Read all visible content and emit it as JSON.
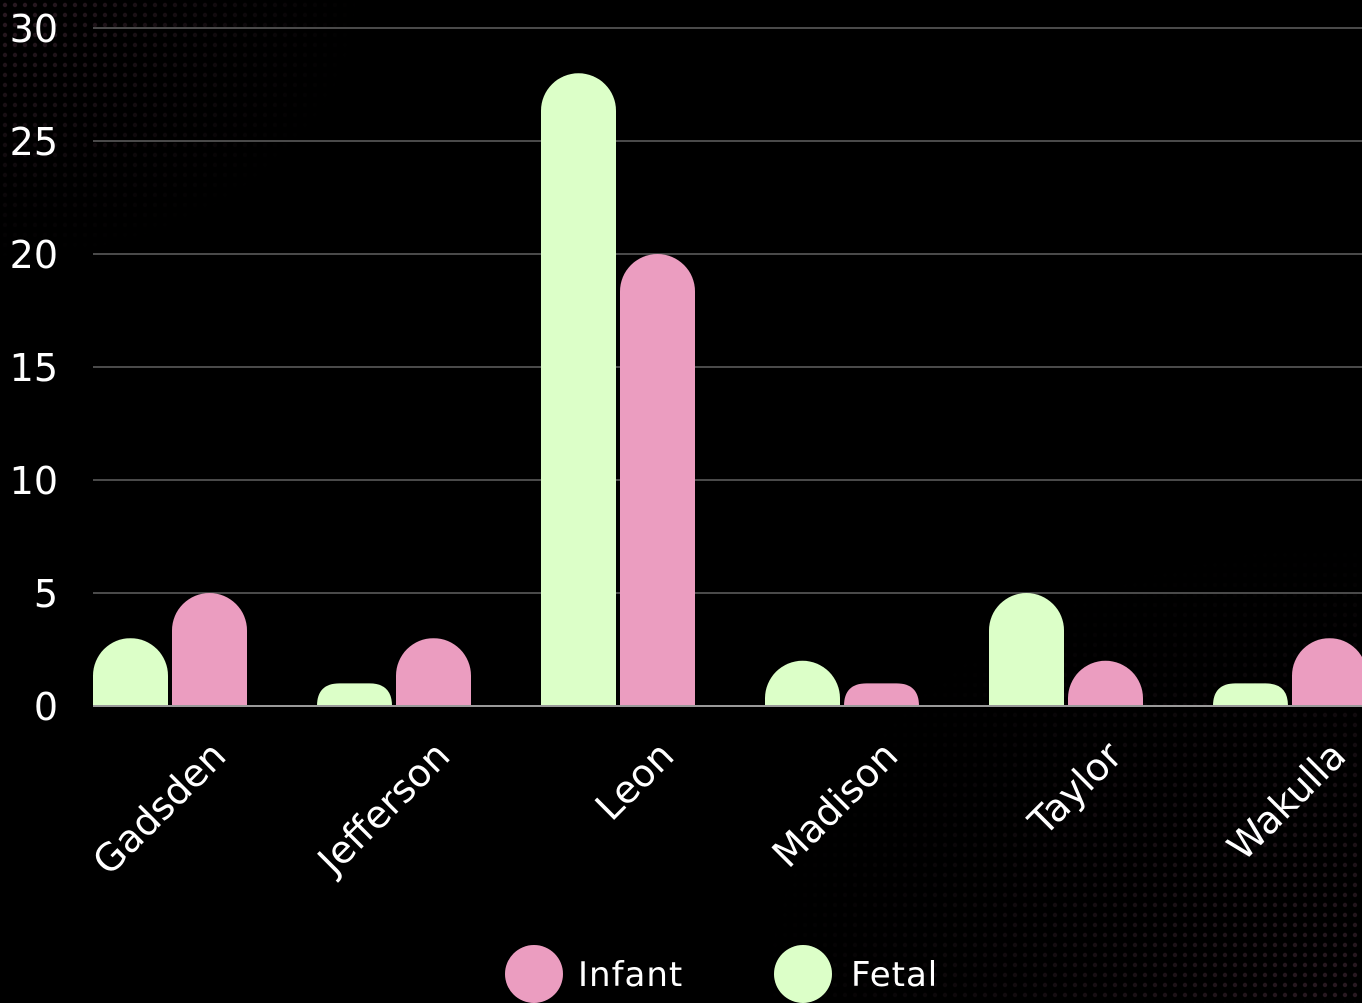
{
  "chart_data": {
    "type": "bar",
    "categories": [
      "Gadsden",
      "Jefferson",
      "Leon",
      "Madison",
      "Taylor",
      "Wakulla"
    ],
    "series": [
      {
        "name": "Fetal",
        "values": [
          3,
          1,
          28,
          2,
          5,
          1
        ],
        "color": "#dcffc8"
      },
      {
        "name": "Infant",
        "values": [
          5,
          3,
          20,
          1,
          2,
          3
        ],
        "color": "#eb9dc0"
      }
    ],
    "ylim": [
      0,
      30
    ],
    "yticks": [
      0,
      5,
      10,
      15,
      20,
      25,
      30
    ],
    "xlabel": "",
    "ylabel": "",
    "grid": true,
    "legend_position": "bottom-center",
    "legend": [
      {
        "name": "Infant",
        "color": "#eb9dc0"
      },
      {
        "name": "Fetal",
        "color": "#dcffc8"
      }
    ],
    "gridline_color": "#4a4a4a",
    "axis_color": "#9a9a9a",
    "background_color": "#000000",
    "decoration_color": "#2a1a22"
  }
}
